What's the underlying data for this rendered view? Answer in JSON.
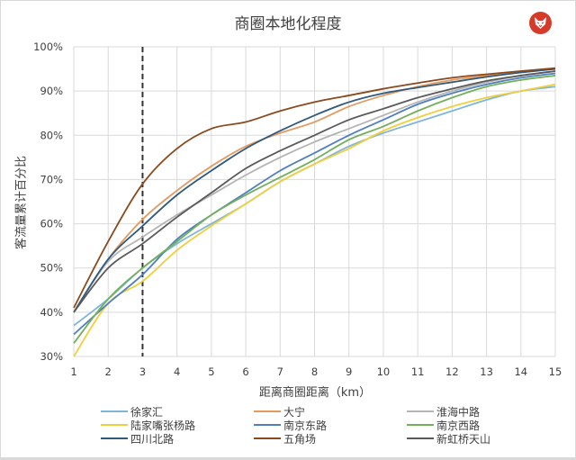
{
  "chart_data": {
    "type": "line",
    "title": "商圈本地化程度",
    "xlabel": "距离商圈距离（km）",
    "ylabel": "客流量累计百分比",
    "x": [
      1,
      2,
      3,
      4,
      5,
      6,
      7,
      8,
      9,
      10,
      11,
      12,
      13,
      14,
      15
    ],
    "xlim": [
      1,
      15
    ],
    "ylim": [
      30,
      100
    ],
    "yticks": [
      "30%",
      "40%",
      "50%",
      "60%",
      "70%",
      "80%",
      "90%",
      "100%"
    ],
    "xticks": [
      "1",
      "2",
      "3",
      "4",
      "5",
      "6",
      "7",
      "8",
      "9",
      "10",
      "11",
      "12",
      "13",
      "14",
      "15"
    ],
    "grid": true,
    "legend_position": "bottom",
    "annotations": [
      {
        "type": "vertical-dashed-line",
        "x": 3
      }
    ],
    "series": [
      {
        "name": "徐家汇",
        "color": "#7eb6d9",
        "values": [
          37,
          43,
          50,
          55.5,
          60,
          64.5,
          69.5,
          73.5,
          77.5,
          80.5,
          83,
          85.5,
          88,
          90,
          91
        ]
      },
      {
        "name": "大宁",
        "color": "#e49a5e",
        "values": [
          40,
          52,
          61,
          67.5,
          73,
          77.5,
          80.5,
          83,
          86.5,
          89,
          91,
          92.5,
          93.5,
          94.5,
          95
        ]
      },
      {
        "name": "淮海中路",
        "color": "#b4b4b4",
        "values": [
          40,
          51.5,
          57,
          62,
          66.5,
          71,
          75,
          78.5,
          81.5,
          84.5,
          87.5,
          90,
          92,
          93.5,
          94.5
        ]
      },
      {
        "name": "陆家嘴张杨路",
        "color": "#f0cf3c",
        "values": [
          29,
          42,
          47,
          54,
          59.5,
          64.5,
          69.5,
          73.5,
          77,
          81,
          84,
          86.5,
          88.5,
          90,
          91.5
        ]
      },
      {
        "name": "南京东路",
        "color": "#4f7fbf",
        "values": [
          35,
          42,
          48.5,
          56.5,
          62,
          67,
          72,
          76,
          80,
          83.5,
          87,
          89.5,
          91.5,
          93,
          94
        ]
      },
      {
        "name": "南京西路",
        "color": "#72b05a",
        "values": [
          33,
          43,
          50,
          56,
          62,
          66.5,
          70.5,
          74.5,
          79,
          82,
          85.5,
          88.5,
          91,
          92.5,
          93.5
        ]
      },
      {
        "name": "四川北路",
        "color": "#2f5a7e",
        "values": [
          40,
          52,
          59.5,
          66.5,
          72,
          77,
          81,
          84.5,
          87.5,
          89.5,
          90.8,
          92,
          93.2,
          94.2,
          95
        ]
      },
      {
        "name": "五角场",
        "color": "#8a4a1e",
        "values": [
          41,
          56,
          69,
          77,
          81.5,
          83,
          85.5,
          87.5,
          89,
          90.5,
          91.8,
          93,
          93.8,
          94.5,
          95.2
        ]
      },
      {
        "name": "新虹桥天山",
        "color": "#5a5a5a",
        "values": [
          40,
          50,
          55.5,
          61.5,
          67,
          72.5,
          76.5,
          80,
          83.5,
          86,
          88.5,
          90.5,
          92.3,
          93.5,
          94.5
        ]
      }
    ]
  },
  "header": {
    "title": "商圈本地化程度",
    "logo": "fox-logo-icon"
  },
  "axes": {
    "xlabel": "距离商圈距离（km）",
    "ylabel": "客流量累计百分比"
  }
}
